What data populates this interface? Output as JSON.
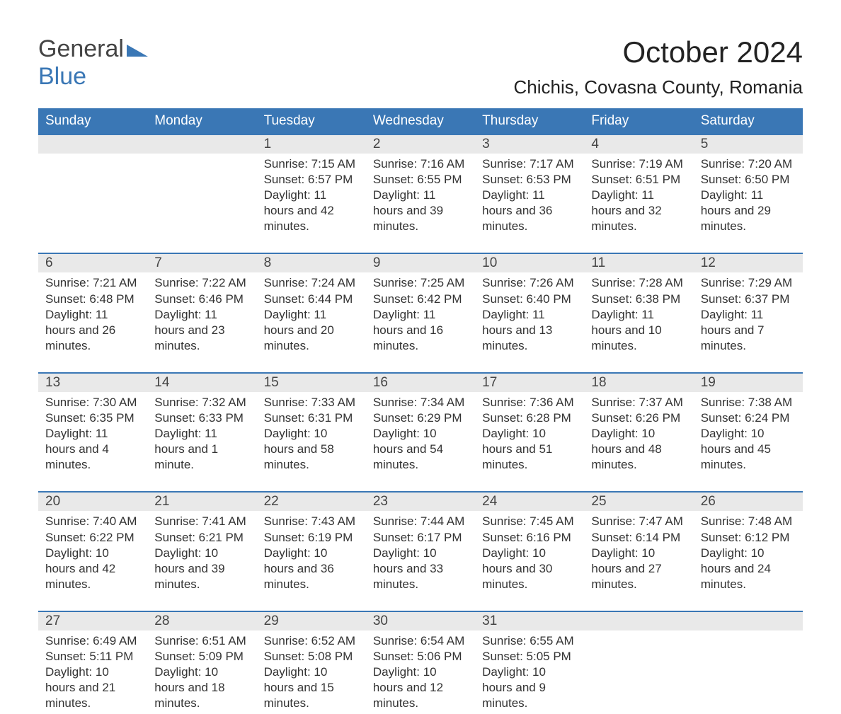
{
  "logo": {
    "text_general": "General",
    "text_blue": "Blue",
    "flag_color": "#3a77b5"
  },
  "title": "October 2024",
  "location": "Chichis, Covasna County, Romania",
  "colors": {
    "header_bg": "#3a77b5",
    "header_text": "#ffffff",
    "daynum_bg": "#e9e9e9",
    "week_border": "#3a77b5",
    "body_text": "#333333",
    "page_bg": "#ffffff"
  },
  "calendar": {
    "type": "table",
    "weekdays": [
      "Sunday",
      "Monday",
      "Tuesday",
      "Wednesday",
      "Thursday",
      "Friday",
      "Saturday"
    ],
    "weeks": [
      [
        {
          "num": "",
          "sunrise": "",
          "sunset": "",
          "daylight": ""
        },
        {
          "num": "",
          "sunrise": "",
          "sunset": "",
          "daylight": ""
        },
        {
          "num": "1",
          "sunrise": "Sunrise: 7:15 AM",
          "sunset": "Sunset: 6:57 PM",
          "daylight": "Daylight: 11 hours and 42 minutes."
        },
        {
          "num": "2",
          "sunrise": "Sunrise: 7:16 AM",
          "sunset": "Sunset: 6:55 PM",
          "daylight": "Daylight: 11 hours and 39 minutes."
        },
        {
          "num": "3",
          "sunrise": "Sunrise: 7:17 AM",
          "sunset": "Sunset: 6:53 PM",
          "daylight": "Daylight: 11 hours and 36 minutes."
        },
        {
          "num": "4",
          "sunrise": "Sunrise: 7:19 AM",
          "sunset": "Sunset: 6:51 PM",
          "daylight": "Daylight: 11 hours and 32 minutes."
        },
        {
          "num": "5",
          "sunrise": "Sunrise: 7:20 AM",
          "sunset": "Sunset: 6:50 PM",
          "daylight": "Daylight: 11 hours and 29 minutes."
        }
      ],
      [
        {
          "num": "6",
          "sunrise": "Sunrise: 7:21 AM",
          "sunset": "Sunset: 6:48 PM",
          "daylight": "Daylight: 11 hours and 26 minutes."
        },
        {
          "num": "7",
          "sunrise": "Sunrise: 7:22 AM",
          "sunset": "Sunset: 6:46 PM",
          "daylight": "Daylight: 11 hours and 23 minutes."
        },
        {
          "num": "8",
          "sunrise": "Sunrise: 7:24 AM",
          "sunset": "Sunset: 6:44 PM",
          "daylight": "Daylight: 11 hours and 20 minutes."
        },
        {
          "num": "9",
          "sunrise": "Sunrise: 7:25 AM",
          "sunset": "Sunset: 6:42 PM",
          "daylight": "Daylight: 11 hours and 16 minutes."
        },
        {
          "num": "10",
          "sunrise": "Sunrise: 7:26 AM",
          "sunset": "Sunset: 6:40 PM",
          "daylight": "Daylight: 11 hours and 13 minutes."
        },
        {
          "num": "11",
          "sunrise": "Sunrise: 7:28 AM",
          "sunset": "Sunset: 6:38 PM",
          "daylight": "Daylight: 11 hours and 10 minutes."
        },
        {
          "num": "12",
          "sunrise": "Sunrise: 7:29 AM",
          "sunset": "Sunset: 6:37 PM",
          "daylight": "Daylight: 11 hours and 7 minutes."
        }
      ],
      [
        {
          "num": "13",
          "sunrise": "Sunrise: 7:30 AM",
          "sunset": "Sunset: 6:35 PM",
          "daylight": "Daylight: 11 hours and 4 minutes."
        },
        {
          "num": "14",
          "sunrise": "Sunrise: 7:32 AM",
          "sunset": "Sunset: 6:33 PM",
          "daylight": "Daylight: 11 hours and 1 minute."
        },
        {
          "num": "15",
          "sunrise": "Sunrise: 7:33 AM",
          "sunset": "Sunset: 6:31 PM",
          "daylight": "Daylight: 10 hours and 58 minutes."
        },
        {
          "num": "16",
          "sunrise": "Sunrise: 7:34 AM",
          "sunset": "Sunset: 6:29 PM",
          "daylight": "Daylight: 10 hours and 54 minutes."
        },
        {
          "num": "17",
          "sunrise": "Sunrise: 7:36 AM",
          "sunset": "Sunset: 6:28 PM",
          "daylight": "Daylight: 10 hours and 51 minutes."
        },
        {
          "num": "18",
          "sunrise": "Sunrise: 7:37 AM",
          "sunset": "Sunset: 6:26 PM",
          "daylight": "Daylight: 10 hours and 48 minutes."
        },
        {
          "num": "19",
          "sunrise": "Sunrise: 7:38 AM",
          "sunset": "Sunset: 6:24 PM",
          "daylight": "Daylight: 10 hours and 45 minutes."
        }
      ],
      [
        {
          "num": "20",
          "sunrise": "Sunrise: 7:40 AM",
          "sunset": "Sunset: 6:22 PM",
          "daylight": "Daylight: 10 hours and 42 minutes."
        },
        {
          "num": "21",
          "sunrise": "Sunrise: 7:41 AM",
          "sunset": "Sunset: 6:21 PM",
          "daylight": "Daylight: 10 hours and 39 minutes."
        },
        {
          "num": "22",
          "sunrise": "Sunrise: 7:43 AM",
          "sunset": "Sunset: 6:19 PM",
          "daylight": "Daylight: 10 hours and 36 minutes."
        },
        {
          "num": "23",
          "sunrise": "Sunrise: 7:44 AM",
          "sunset": "Sunset: 6:17 PM",
          "daylight": "Daylight: 10 hours and 33 minutes."
        },
        {
          "num": "24",
          "sunrise": "Sunrise: 7:45 AM",
          "sunset": "Sunset: 6:16 PM",
          "daylight": "Daylight: 10 hours and 30 minutes."
        },
        {
          "num": "25",
          "sunrise": "Sunrise: 7:47 AM",
          "sunset": "Sunset: 6:14 PM",
          "daylight": "Daylight: 10 hours and 27 minutes."
        },
        {
          "num": "26",
          "sunrise": "Sunrise: 7:48 AM",
          "sunset": "Sunset: 6:12 PM",
          "daylight": "Daylight: 10 hours and 24 minutes."
        }
      ],
      [
        {
          "num": "27",
          "sunrise": "Sunrise: 6:49 AM",
          "sunset": "Sunset: 5:11 PM",
          "daylight": "Daylight: 10 hours and 21 minutes."
        },
        {
          "num": "28",
          "sunrise": "Sunrise: 6:51 AM",
          "sunset": "Sunset: 5:09 PM",
          "daylight": "Daylight: 10 hours and 18 minutes."
        },
        {
          "num": "29",
          "sunrise": "Sunrise: 6:52 AM",
          "sunset": "Sunset: 5:08 PM",
          "daylight": "Daylight: 10 hours and 15 minutes."
        },
        {
          "num": "30",
          "sunrise": "Sunrise: 6:54 AM",
          "sunset": "Sunset: 5:06 PM",
          "daylight": "Daylight: 10 hours and 12 minutes."
        },
        {
          "num": "31",
          "sunrise": "Sunrise: 6:55 AM",
          "sunset": "Sunset: 5:05 PM",
          "daylight": "Daylight: 10 hours and 9 minutes."
        },
        {
          "num": "",
          "sunrise": "",
          "sunset": "",
          "daylight": ""
        },
        {
          "num": "",
          "sunrise": "",
          "sunset": "",
          "daylight": ""
        }
      ]
    ]
  }
}
